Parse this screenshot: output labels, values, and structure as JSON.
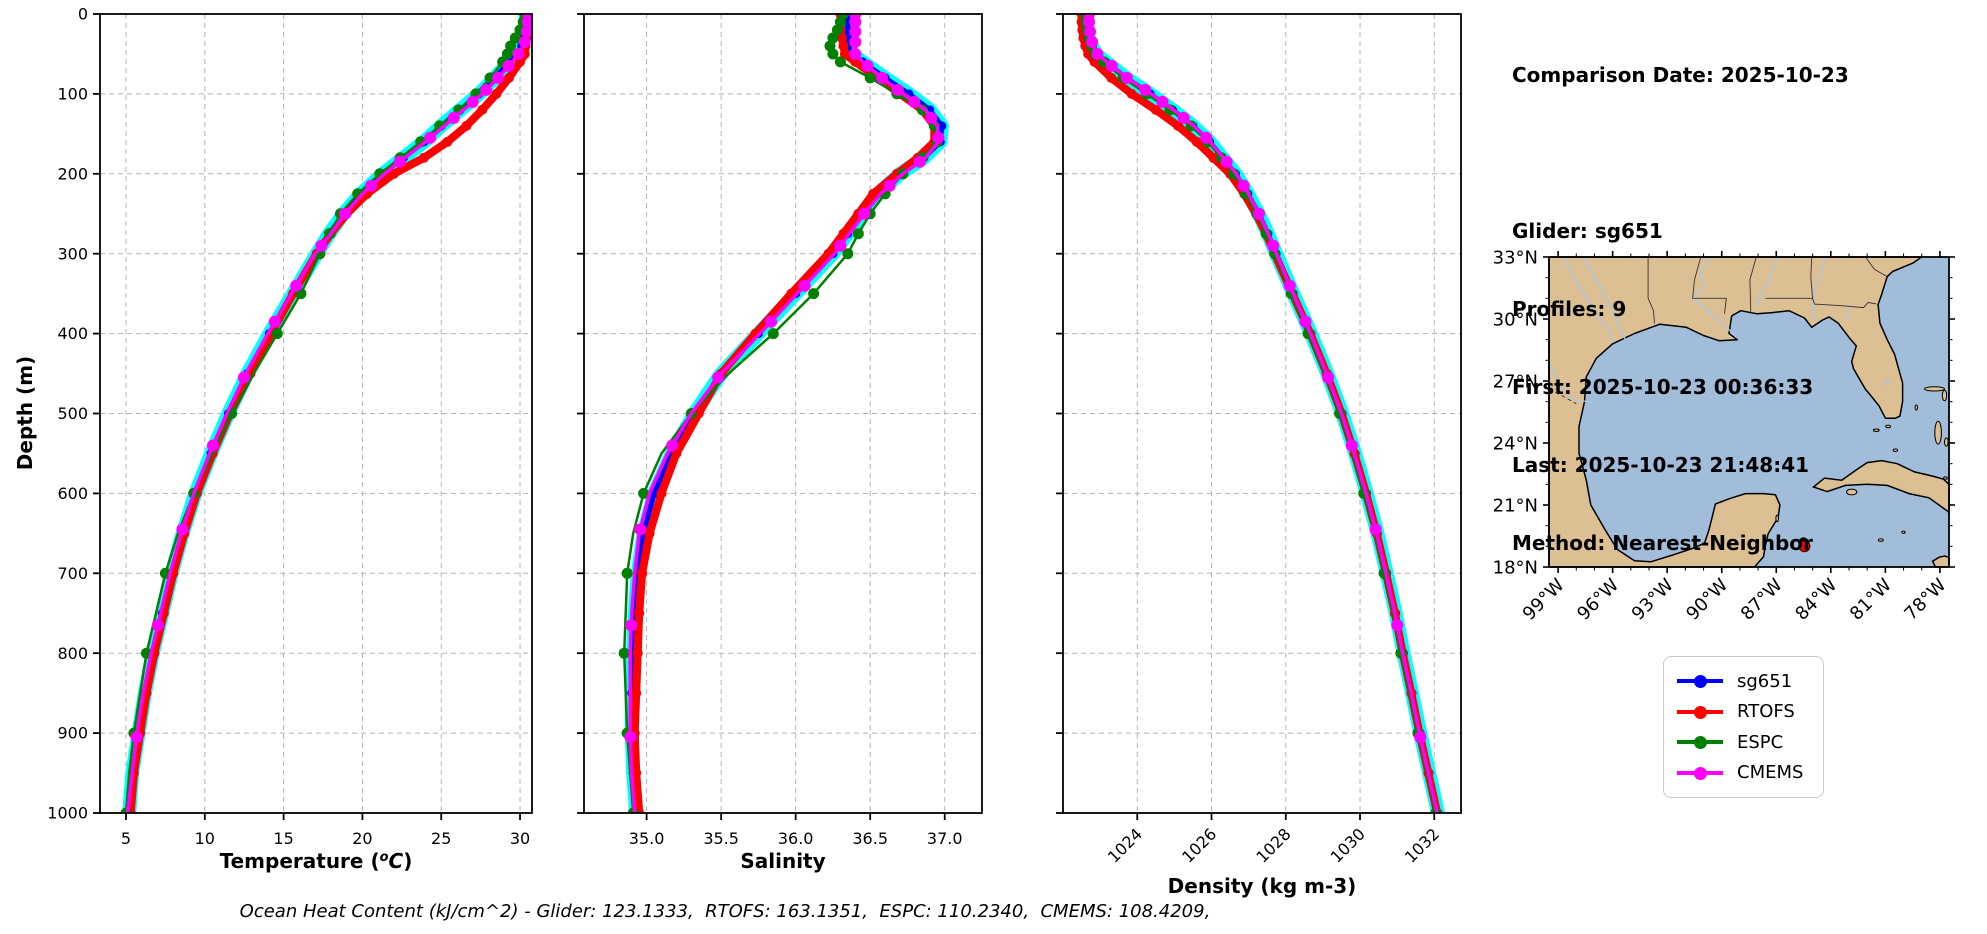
{
  "info_panel": {
    "comparison_date": "Comparison Date: 2025-10-23",
    "glider": "Glider: sg651",
    "profiles": "Profiles: 9",
    "first": "First: 2025-10-23 00:36:33",
    "last": "Last: 2025-10-23 21:48:41",
    "method": "Method: Nearest-Neighbor"
  },
  "footer": {
    "text": "Ocean Heat Content (kJ/cm^2) - Glider: 123.1333,  RTOFS: 163.1351,  ESPC: 110.2340,  CMEMS: 108.4209,"
  },
  "legend": {
    "entries": [
      {
        "label": "sg651",
        "color": "#0000ff"
      },
      {
        "label": "RTOFS",
        "color": "#ff0000"
      },
      {
        "label": "ESPC",
        "color": "#008000"
      },
      {
        "label": "CMEMS",
        "color": "#ff00ff"
      }
    ]
  },
  "map": {
    "lat_labels": [
      "33°N",
      "30°N",
      "27°N",
      "24°N",
      "21°N",
      "18°N"
    ],
    "lat_values": [
      33,
      30,
      27,
      24,
      21,
      18
    ],
    "lon_labels": [
      "99°W",
      "96°W",
      "93°W",
      "90°W",
      "87°W",
      "84°W",
      "81°W",
      "78°W"
    ],
    "lon_values": [
      -99,
      -96,
      -93,
      -90,
      -87,
      -84,
      -81,
      -78
    ],
    "extent": {
      "lon_min": -99.5,
      "lon_max": -77.5,
      "lat_min": 18,
      "lat_max": 33
    },
    "colors": {
      "land": "#dcc094",
      "ocean": "#a2bdda",
      "coast": "#000000",
      "river": "#a8c8e8",
      "border": "#333333",
      "lake": "#c0c0c0"
    },
    "glider_marker": {
      "lon": -85.45,
      "lat": 19.0,
      "color": "#ff0000"
    },
    "secondary_marker": {
      "lon": -85.5,
      "lat": 19.22,
      "color": "#000000"
    }
  },
  "chart_data": [
    {
      "name": "temperature-profile",
      "type": "line",
      "title": "",
      "xlabel": "Temperature (°C)",
      "ylabel": "Depth (m)",
      "xlim": [
        3.35,
        30.76
      ],
      "ylim": [
        1000,
        0
      ],
      "grid": true,
      "rotate_xticks": false,
      "xticks": [
        5,
        10,
        15,
        20,
        25,
        30
      ],
      "xtick_labels": [
        "5",
        "10",
        "15",
        "20",
        "25",
        "30"
      ],
      "yticks": [
        0,
        100,
        200,
        300,
        400,
        500,
        600,
        700,
        800,
        900,
        1000
      ],
      "depths": [
        0,
        10,
        20,
        30,
        40,
        50,
        60,
        80,
        100,
        120,
        140,
        160,
        180,
        200,
        225,
        250,
        275,
        300,
        350,
        400,
        450,
        500,
        550,
        600,
        650,
        700,
        750,
        800,
        850,
        900,
        950,
        1000
      ],
      "series": [
        {
          "name": "sg651-envelope",
          "color": "#00ffff",
          "width": 14,
          "values_ref": "sg651",
          "markers": "none",
          "marker_size": 0
        },
        {
          "name": "sg651",
          "color": "#0000ff",
          "width": 5,
          "markers": "all",
          "marker_size": 4.5,
          "values": [
            30.35,
            30.35,
            30.3,
            30.25,
            30.1,
            29.8,
            29.3,
            28.4,
            27.4,
            26.2,
            25.0,
            23.9,
            22.6,
            21.3,
            19.9,
            18.8,
            17.9,
            17.1,
            15.6,
            14.1,
            12.7,
            11.5,
            10.4,
            9.4,
            8.6,
            7.9,
            7.3,
            6.7,
            6.2,
            5.8,
            5.4,
            5.2
          ]
        },
        {
          "name": "RTOFS",
          "color": "#ff0000",
          "width": 8,
          "markers": "all",
          "marker_size": 5,
          "values": [
            30.45,
            30.45,
            30.45,
            30.4,
            30.35,
            30.3,
            30.0,
            29.3,
            28.5,
            27.6,
            26.6,
            25.4,
            23.9,
            22.0,
            20.3,
            19.0,
            18.0,
            17.1,
            15.6,
            14.2,
            12.9,
            11.6,
            10.5,
            9.5,
            8.7,
            8.0,
            7.4,
            6.8,
            6.3,
            5.9,
            5.5,
            5.3
          ]
        },
        {
          "name": "ESPC",
          "color": "#008000",
          "width": 2.5,
          "marker_size": 5.5,
          "markers": [
            0,
            10,
            20,
            30,
            40,
            50,
            60,
            80,
            100,
            120,
            140,
            160,
            180,
            200,
            225,
            250,
            275,
            300,
            350,
            400,
            500,
            600,
            700,
            800,
            900,
            1000
          ],
          "values": [
            30.3,
            30.2,
            30.0,
            29.7,
            29.4,
            29.2,
            28.9,
            28.1,
            27.2,
            26.1,
            24.9,
            23.7,
            22.4,
            21.1,
            19.7,
            18.6,
            17.9,
            17.3,
            16.1,
            14.6,
            13.1,
            11.7,
            10.5,
            9.3,
            8.3,
            7.5,
            6.9,
            6.3,
            5.9,
            5.5,
            5.2,
            5.0
          ]
        },
        {
          "name": "CMEMS",
          "color": "#ff00ff",
          "width": 3.5,
          "marker_size": 6,
          "markers": [
            0,
            10,
            22,
            35,
            50,
            65,
            80,
            95,
            110,
            130,
            155,
            185,
            215,
            250,
            290,
            340,
            385,
            455,
            540,
            645,
            765,
            905
          ],
          "values": [
            30.5,
            30.5,
            30.45,
            30.4,
            30.2,
            29.9,
            29.5,
            28.6,
            27.6,
            26.4,
            25.2,
            24.0,
            22.7,
            21.4,
            20.0,
            18.9,
            18.0,
            17.0,
            15.5,
            14.0,
            12.6,
            11.4,
            10.3,
            9.3,
            8.5,
            7.8,
            7.2,
            6.6,
            6.1,
            5.7,
            5.4,
            5.1
          ]
        }
      ]
    },
    {
      "name": "salinity-profile",
      "type": "line",
      "title": "",
      "xlabel": "Salinity",
      "ylabel": "Depth (m)",
      "xlim": [
        34.58,
        37.25
      ],
      "ylim": [
        1000,
        0
      ],
      "grid": true,
      "rotate_xticks": false,
      "xticks": [
        35.0,
        35.5,
        36.0,
        36.5,
        37.0
      ],
      "xtick_labels": [
        "35.0",
        "35.5",
        "36.0",
        "36.5",
        "37.0"
      ],
      "yticks": [
        0,
        100,
        200,
        300,
        400,
        500,
        600,
        700,
        800,
        900,
        1000
      ],
      "depths": [
        0,
        10,
        20,
        30,
        40,
        50,
        60,
        80,
        100,
        120,
        140,
        160,
        180,
        200,
        225,
        250,
        275,
        300,
        350,
        400,
        450,
        500,
        550,
        600,
        650,
        700,
        750,
        800,
        850,
        900,
        950,
        1000
      ],
      "series": [
        {
          "name": "sg651-envelope",
          "color": "#00ffff",
          "width": 14,
          "values_ref": "sg651",
          "markers": "none",
          "marker_size": 0
        },
        {
          "name": "sg651",
          "color": "#0000ff",
          "width": 5,
          "markers": "all",
          "marker_size": 4.5,
          "values": [
            36.35,
            36.35,
            36.35,
            36.35,
            36.35,
            36.38,
            36.45,
            36.6,
            36.76,
            36.9,
            36.98,
            36.97,
            36.86,
            36.7,
            36.55,
            36.45,
            36.35,
            36.25,
            36.0,
            35.75,
            35.5,
            35.32,
            35.17,
            35.05,
            34.98,
            34.94,
            34.92,
            34.91,
            34.9,
            34.9,
            34.91,
            34.93
          ]
        },
        {
          "name": "RTOFS",
          "color": "#ff0000",
          "width": 8,
          "markers": "all",
          "marker_size": 5,
          "values": [
            36.3,
            36.3,
            36.3,
            36.31,
            36.32,
            36.33,
            36.4,
            36.55,
            36.7,
            36.85,
            36.93,
            36.93,
            36.82,
            36.68,
            36.52,
            36.42,
            36.32,
            36.22,
            35.97,
            35.73,
            35.5,
            35.35,
            35.2,
            35.1,
            35.02,
            34.97,
            34.95,
            34.94,
            34.93,
            34.92,
            34.93,
            34.95
          ]
        },
        {
          "name": "ESPC",
          "color": "#008000",
          "width": 2.5,
          "marker_size": 5.5,
          "markers": [
            0,
            10,
            20,
            30,
            40,
            50,
            60,
            80,
            100,
            120,
            140,
            160,
            180,
            200,
            225,
            250,
            275,
            300,
            350,
            400,
            500,
            600,
            700,
            800,
            900,
            1000
          ],
          "values": [
            36.32,
            36.3,
            36.28,
            36.25,
            36.23,
            36.25,
            36.3,
            36.5,
            36.68,
            36.85,
            36.93,
            36.95,
            36.85,
            36.72,
            36.6,
            36.5,
            36.42,
            36.35,
            36.12,
            35.85,
            35.55,
            35.3,
            35.1,
            34.98,
            34.91,
            34.87,
            34.86,
            34.85,
            34.86,
            34.87,
            34.89,
            34.91
          ]
        },
        {
          "name": "CMEMS",
          "color": "#ff00ff",
          "width": 3.5,
          "marker_size": 6,
          "markers": [
            0,
            10,
            22,
            35,
            50,
            65,
            80,
            95,
            110,
            130,
            155,
            185,
            215,
            250,
            290,
            340,
            385,
            455,
            540,
            645,
            765,
            905
          ],
          "values": [
            36.4,
            36.4,
            36.4,
            36.4,
            36.4,
            36.4,
            36.45,
            36.58,
            36.72,
            36.87,
            36.95,
            36.96,
            36.87,
            36.72,
            36.57,
            36.46,
            36.36,
            36.26,
            36.01,
            35.76,
            35.5,
            35.3,
            35.14,
            35.02,
            34.95,
            34.92,
            34.9,
            34.89,
            34.89,
            34.89,
            34.9,
            34.92
          ]
        }
      ]
    },
    {
      "name": "density-profile",
      "type": "line",
      "title": "",
      "xlabel": "Density (kg m-3)",
      "ylabel": "Depth (m)",
      "xlim": [
        1022.0,
        1032.72
      ],
      "ylim": [
        1000,
        0
      ],
      "grid": true,
      "rotate_xticks": true,
      "xticks": [
        1024,
        1026,
        1028,
        1030,
        1032
      ],
      "xtick_labels": [
        "1024",
        "1026",
        "1028",
        "1030",
        "1032"
      ],
      "yticks": [
        0,
        100,
        200,
        300,
        400,
        500,
        600,
        700,
        800,
        900,
        1000
      ],
      "depths": [
        0,
        10,
        20,
        30,
        40,
        50,
        60,
        80,
        100,
        120,
        140,
        160,
        180,
        200,
        225,
        250,
        275,
        300,
        350,
        400,
        450,
        500,
        550,
        600,
        650,
        700,
        750,
        800,
        850,
        900,
        950,
        1000
      ],
      "series": [
        {
          "name": "sg651-envelope",
          "color": "#00ffff",
          "width": 14,
          "values_ref": "sg651",
          "markers": "none",
          "marker_size": 0
        },
        {
          "name": "sg651",
          "color": "#0000ff",
          "width": 5,
          "markers": "all",
          "marker_size": 4.5,
          "values": [
            1022.65,
            1022.65,
            1022.67,
            1022.7,
            1022.78,
            1022.9,
            1023.15,
            1023.7,
            1024.35,
            1024.95,
            1025.5,
            1025.95,
            1026.3,
            1026.65,
            1026.98,
            1027.27,
            1027.52,
            1027.74,
            1028.2,
            1028.68,
            1029.12,
            1029.52,
            1029.87,
            1030.18,
            1030.47,
            1030.72,
            1030.96,
            1031.17,
            1031.4,
            1031.62,
            1031.86,
            1032.1
          ]
        },
        {
          "name": "RTOFS",
          "color": "#ff0000",
          "width": 8,
          "markers": "all",
          "marker_size": 5,
          "values": [
            1022.5,
            1022.5,
            1022.52,
            1022.55,
            1022.6,
            1022.68,
            1022.85,
            1023.3,
            1023.85,
            1024.5,
            1025.1,
            1025.6,
            1026.05,
            1026.5,
            1026.88,
            1027.2,
            1027.47,
            1027.7,
            1028.18,
            1028.66,
            1029.1,
            1029.5,
            1029.85,
            1030.16,
            1030.45,
            1030.7,
            1030.94,
            1031.15,
            1031.38,
            1031.6,
            1031.84,
            1032.08
          ]
        },
        {
          "name": "ESPC",
          "color": "#008000",
          "width": 2.5,
          "marker_size": 5.5,
          "markers": [
            0,
            10,
            20,
            30,
            40,
            50,
            60,
            80,
            100,
            120,
            140,
            160,
            180,
            200,
            225,
            250,
            275,
            300,
            350,
            400,
            500,
            600,
            700,
            800,
            900,
            1000
          ],
          "values": [
            1022.6,
            1022.62,
            1022.65,
            1022.7,
            1022.77,
            1022.87,
            1023.1,
            1023.62,
            1024.25,
            1024.88,
            1025.45,
            1025.9,
            1026.27,
            1026.6,
            1026.93,
            1027.22,
            1027.47,
            1027.7,
            1028.15,
            1028.6,
            1029.05,
            1029.45,
            1029.8,
            1030.1,
            1030.4,
            1030.65,
            1030.9,
            1031.1,
            1031.33,
            1031.56,
            1031.8,
            1032.04
          ]
        },
        {
          "name": "CMEMS",
          "color": "#ff00ff",
          "width": 3.5,
          "marker_size": 6,
          "markers": [
            0,
            10,
            22,
            35,
            50,
            65,
            80,
            95,
            110,
            130,
            155,
            185,
            215,
            250,
            290,
            340,
            385,
            455,
            540,
            645,
            765,
            905
          ],
          "values": [
            1022.7,
            1022.7,
            1022.72,
            1022.75,
            1022.82,
            1022.93,
            1023.18,
            1023.72,
            1024.38,
            1024.98,
            1025.52,
            1025.97,
            1026.32,
            1026.67,
            1027.0,
            1027.28,
            1027.53,
            1027.75,
            1028.2,
            1028.67,
            1029.1,
            1029.5,
            1029.85,
            1030.16,
            1030.45,
            1030.7,
            1030.94,
            1031.15,
            1031.38,
            1031.6,
            1031.84,
            1032.08
          ]
        }
      ]
    }
  ]
}
